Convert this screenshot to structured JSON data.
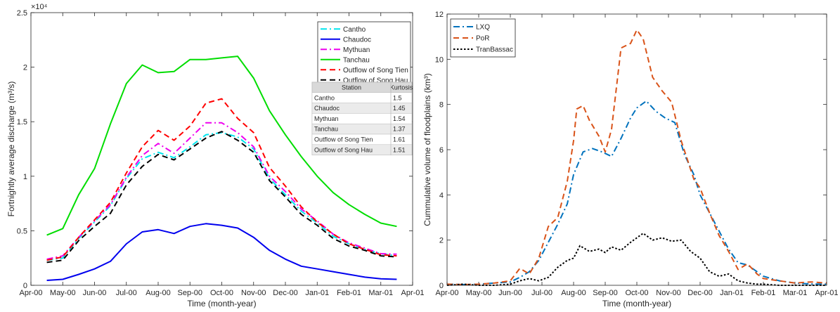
{
  "chart_data": [
    {
      "type": "line",
      "xlabel": "Time (month-year)",
      "ylabel": "Fortnightly average discharge (m³/s)",
      "y_exponent_label": "×10⁴",
      "ylim": [
        0,
        25000
      ],
      "y_ticks": [
        0,
        5000,
        10000,
        15000,
        20000,
        25000
      ],
      "y_tick_labels": [
        "0",
        "0.5",
        "1",
        "1.5",
        "2",
        "2.5"
      ],
      "x_ticks": [
        "Apr-00",
        "May-00",
        "Jun-00",
        "Jul-00",
        "Aug-00",
        "Sep-00",
        "Oct-00",
        "Nov-00",
        "Dec-00",
        "Jan-01",
        "Feb-01",
        "Mar-01",
        "Apr-01"
      ],
      "x_values": [
        0.5,
        1.0,
        1.5,
        2.0,
        2.5,
        3.0,
        3.5,
        4.0,
        4.5,
        5.0,
        5.5,
        6.0,
        6.5,
        7.0,
        7.5,
        8.0,
        8.5,
        9.0,
        9.5,
        10.0,
        10.5,
        11.0,
        11.5
      ],
      "legend_position": "top-right",
      "series": [
        {
          "name": "Cantho",
          "color": "#00e5ee",
          "dash": "dash-dot",
          "values": [
            2300,
            2500,
            4300,
            5800,
            7300,
            9800,
            11600,
            12200,
            11700,
            12700,
            13800,
            14000,
            13600,
            12500,
            9800,
            8300,
            6800,
            5700,
            4500,
            3800,
            3300,
            2900,
            2700
          ]
        },
        {
          "name": "Chaudoc",
          "color": "#0000ee",
          "dash": "solid",
          "values": [
            450,
            550,
            1000,
            1500,
            2200,
            3800,
            4900,
            5100,
            4750,
            5400,
            5650,
            5500,
            5250,
            4400,
            3200,
            2400,
            1750,
            1500,
            1250,
            1000,
            750,
            600,
            550
          ]
        },
        {
          "name": "Mythuan",
          "color": "#ee00ee",
          "dash": "dash-dot",
          "values": [
            2400,
            2700,
            4400,
            5900,
            7400,
            9900,
            11900,
            13000,
            12100,
            13500,
            14900,
            14900,
            14000,
            12700,
            10000,
            8600,
            7000,
            5900,
            4700,
            3900,
            3400,
            2900,
            2850
          ]
        },
        {
          "name": "Tanchau",
          "color": "#00dd00",
          "dash": "solid",
          "values": [
            4600,
            5200,
            8300,
            10700,
            14800,
            18500,
            20200,
            19500,
            19600,
            20700,
            20700,
            20850,
            21000,
            19000,
            16000,
            13800,
            11800,
            10000,
            8500,
            7400,
            6500,
            5700,
            5400
          ]
        },
        {
          "name": "Outflow of Song Tien",
          "color": "#ff0000",
          "dash": "dashed",
          "values": [
            2300,
            2600,
            4400,
            6000,
            7600,
            10300,
            12700,
            14200,
            13300,
            14600,
            16700,
            17100,
            15300,
            14000,
            10800,
            9100,
            7200,
            5800,
            4700,
            3800,
            3300,
            2800,
            2700
          ]
        },
        {
          "name": "Outflow of Song Hau",
          "color": "#000000",
          "dash": "dashed",
          "values": [
            2100,
            2300,
            4100,
            5400,
            6600,
            9200,
            10900,
            12000,
            11500,
            12500,
            13500,
            14100,
            13300,
            12200,
            9600,
            8100,
            6500,
            5500,
            4300,
            3600,
            3200,
            2700,
            2600
          ]
        }
      ],
      "table": {
        "headers": [
          "Station",
          "Kurtosis"
        ],
        "rows": [
          [
            "Cantho",
            "1.5"
          ],
          [
            "Chaudoc",
            "1.45"
          ],
          [
            "Mythuan",
            "1.54"
          ],
          [
            "Tanchau",
            "1.37"
          ],
          [
            "Outflow of Song Tien",
            "1.61"
          ],
          [
            "Outflow of Song Hau",
            "1.51"
          ]
        ]
      }
    },
    {
      "type": "line",
      "xlabel": "Time (month-year)",
      "ylabel": "Cummulative volume of floodplains (km³)",
      "ylim": [
        0,
        12
      ],
      "y_ticks": [
        0,
        2,
        4,
        6,
        8,
        10,
        12
      ],
      "x_ticks": [
        "Apr-00",
        "May-00",
        "Jun-00",
        "Jul-00",
        "Aug-00",
        "Sep-00",
        "Oct-00",
        "Nov-00",
        "Dec-00",
        "Jan-01",
        "Feb-01",
        "Mar-01",
        "Apr-01"
      ],
      "legend_position": "top-left",
      "series": [
        {
          "name": "LXQ",
          "color": "#0072bd",
          "dash": "dash-dot",
          "x": [
            0,
            0.5,
            1,
            1.5,
            2,
            2.3,
            2.6,
            2.9,
            3.2,
            3.5,
            3.8,
            4.0,
            4.3,
            4.6,
            4.9,
            5.2,
            5.5,
            5.8,
            6.0,
            6.3,
            6.6,
            6.9,
            7.2,
            7.5,
            7.8,
            8.0,
            8.3,
            8.6,
            8.9,
            9.2,
            9.5,
            9.8,
            10.0,
            10.5,
            11.0,
            11.5,
            12.0
          ],
          "values": [
            0.05,
            0.03,
            0.05,
            0.1,
            0.15,
            0.35,
            0.6,
            1.1,
            1.9,
            2.7,
            3.6,
            4.9,
            5.9,
            6.05,
            5.9,
            5.7,
            6.5,
            7.4,
            7.85,
            8.15,
            7.7,
            7.4,
            7.2,
            5.8,
            4.9,
            4.0,
            3.2,
            2.4,
            1.6,
            1.0,
            0.9,
            0.6,
            0.4,
            0.2,
            0.1,
            0.06,
            0.05
          ]
        },
        {
          "name": "PoR",
          "color": "#d95319",
          "dash": "dashed",
          "x": [
            0,
            0.5,
            1,
            1.5,
            2,
            2.3,
            2.6,
            2.9,
            3.2,
            3.5,
            3.8,
            4.0,
            4.1,
            4.3,
            4.5,
            4.8,
            5.0,
            5.2,
            5.5,
            5.8,
            6.0,
            6.2,
            6.5,
            6.8,
            7.1,
            7.4,
            7.8,
            8.0,
            8.3,
            8.6,
            8.9,
            9.2,
            9.5,
            9.8,
            10.0,
            10.5,
            11.0,
            11.5,
            12.0
          ],
          "values": [
            0.05,
            0.03,
            0.05,
            0.1,
            0.2,
            0.75,
            0.5,
            1.2,
            2.6,
            3.0,
            4.6,
            6.4,
            7.8,
            7.95,
            7.3,
            6.6,
            5.9,
            6.9,
            10.5,
            10.7,
            11.3,
            10.9,
            9.2,
            8.6,
            8.1,
            6.4,
            4.7,
            4.3,
            3.2,
            2.2,
            1.5,
            0.7,
            0.95,
            0.5,
            0.3,
            0.2,
            0.1,
            0.15,
            0.1
          ]
        },
        {
          "name": "TranBassac",
          "color": "#000000",
          "dash": "dotted",
          "x": [
            0,
            0.5,
            1,
            1.5,
            2,
            2.3,
            2.6,
            2.9,
            3.2,
            3.5,
            3.8,
            4.0,
            4.2,
            4.5,
            4.8,
            5.0,
            5.2,
            5.5,
            5.8,
            6.0,
            6.2,
            6.5,
            6.8,
            7.1,
            7.4,
            7.7,
            8.0,
            8.3,
            8.6,
            8.9,
            9.2,
            9.5,
            9.8,
            10.0,
            10.5,
            11.0,
            11.5,
            12.0
          ],
          "values": [
            0,
            0.05,
            0,
            0,
            0.05,
            0.2,
            0.3,
            0.2,
            0.35,
            0.8,
            1.1,
            1.2,
            1.75,
            1.5,
            1.6,
            1.45,
            1.7,
            1.55,
            1.9,
            2.1,
            2.3,
            2.0,
            2.1,
            1.95,
            2.0,
            1.5,
            1.2,
            0.6,
            0.4,
            0.5,
            0.2,
            0.1,
            0.05,
            0.05,
            0,
            0,
            0,
            0
          ]
        }
      ]
    }
  ]
}
